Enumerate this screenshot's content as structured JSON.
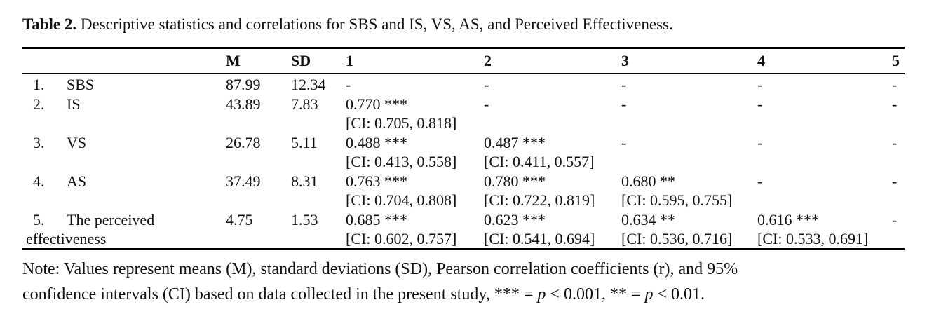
{
  "title": {
    "label": "Table 2.",
    "text": " Descriptive statistics and correlations for SBS and IS, VS, AS, and Perceived Effectiveness."
  },
  "table": {
    "headers": [
      "",
      "M",
      "SD",
      "1",
      "2",
      "3",
      "4",
      "5"
    ],
    "rows": [
      {
        "num": "1.",
        "label": "SBS",
        "m": "87.99",
        "sd": "12.34",
        "cols": [
          {
            "v": "-",
            "ci": ""
          },
          {
            "v": "-",
            "ci": ""
          },
          {
            "v": "-",
            "ci": ""
          },
          {
            "v": "-",
            "ci": ""
          },
          {
            "v": "-",
            "ci": ""
          }
        ]
      },
      {
        "num": "2.",
        "label": "IS",
        "m": "43.89",
        "sd": "7.83",
        "cols": [
          {
            "v": "0.770 ***",
            "ci": "[CI: 0.705, 0.818]"
          },
          {
            "v": "-",
            "ci": ""
          },
          {
            "v": "-",
            "ci": ""
          },
          {
            "v": "-",
            "ci": ""
          },
          {
            "v": "-",
            "ci": ""
          }
        ]
      },
      {
        "num": "3.",
        "label": "VS",
        "m": "26.78",
        "sd": "5.11",
        "cols": [
          {
            "v": "0.488 ***",
            "ci": "[CI: 0.413, 0.558]"
          },
          {
            "v": "0.487 ***",
            "ci": "[CI: 0.411, 0.557]"
          },
          {
            "v": "-",
            "ci": ""
          },
          {
            "v": "-",
            "ci": ""
          },
          {
            "v": "-",
            "ci": ""
          }
        ]
      },
      {
        "num": "4.",
        "label": "AS",
        "m": "37.49",
        "sd": "8.31",
        "cols": [
          {
            "v": "0.763 ***",
            "ci": "[CI: 0.704, 0.808]"
          },
          {
            "v": "0.780 ***",
            "ci": "[CI: 0.722, 0.819]"
          },
          {
            "v": "0.680 **",
            "ci": "[CI: 0.595, 0.755]"
          },
          {
            "v": "-",
            "ci": ""
          },
          {
            "v": "-",
            "ci": ""
          }
        ]
      },
      {
        "num": "5.",
        "label": "The perceived effectiveness",
        "m": "4.75",
        "sd": "1.53",
        "cols": [
          {
            "v": "0.685 ***",
            "ci": "[CI: 0.602, 0.757]"
          },
          {
            "v": "0.623 ***",
            "ci": "[CI: 0.541, 0.694]"
          },
          {
            "v": "0.634 **",
            "ci": "[CI: 0.536, 0.716]"
          },
          {
            "v": "0.616 ***",
            "ci": "[CI: 0.533, 0.691]"
          },
          {
            "v": "-",
            "ci": ""
          }
        ]
      }
    ]
  },
  "note": {
    "line1": "Note: Values represent means (M), standard deviations (SD), Pearson correlation coefficients (r), and 95%",
    "line2_pre": "confidence intervals (CI) based on data collected in the present study, *** = ",
    "p": "p",
    "line2_mid": " < 0.001, ** = ",
    "line2_end": " < 0.01."
  }
}
